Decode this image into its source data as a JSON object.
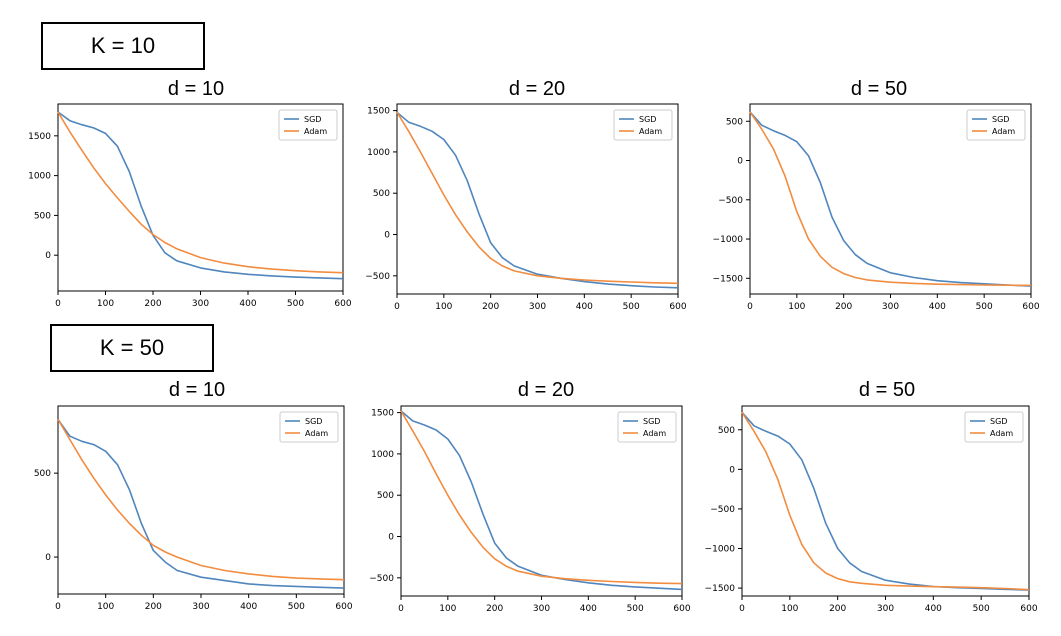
{
  "labels": {
    "k_top": "K = 10",
    "k_bottom": "K = 50"
  },
  "colors": {
    "sgd": "#4f86bd",
    "adam": "#f28c40",
    "axis": "#000000"
  },
  "chart_data": [
    {
      "type": "line",
      "title": "d = 10",
      "group": "K = 10",
      "xlim": [
        0,
        600
      ],
      "ylim": [
        -450,
        1900
      ],
      "xticks": [
        "0",
        "100",
        "200",
        "300",
        "400",
        "500",
        "600"
      ],
      "yticks": [
        {
          "value": 1500,
          "label": "1500"
        },
        {
          "value": 1000,
          "label": "1000"
        },
        {
          "value": 500,
          "label": "500"
        },
        {
          "value": 0,
          "label": "0"
        }
      ],
      "legend": "top-right",
      "series": [
        {
          "name": "SGD",
          "x": [
            0,
            25,
            50,
            75,
            100,
            125,
            150,
            175,
            200,
            225,
            250,
            300,
            350,
            400,
            450,
            500,
            550,
            600
          ],
          "y": [
            1800,
            1690,
            1640,
            1600,
            1530,
            1370,
            1050,
            620,
            250,
            30,
            -70,
            -160,
            -210,
            -240,
            -260,
            -275,
            -285,
            -295
          ]
        },
        {
          "name": "Adam",
          "x": [
            0,
            25,
            50,
            75,
            100,
            125,
            150,
            175,
            200,
            225,
            250,
            300,
            350,
            400,
            450,
            500,
            550,
            600
          ],
          "y": [
            1800,
            1550,
            1320,
            1100,
            900,
            720,
            550,
            390,
            260,
            160,
            80,
            -30,
            -100,
            -145,
            -175,
            -195,
            -210,
            -220
          ]
        }
      ]
    },
    {
      "type": "line",
      "title": "d = 20",
      "group": "K = 10",
      "xlim": [
        0,
        600
      ],
      "ylim": [
        -720,
        1580
      ],
      "xticks": [
        "0",
        "100",
        "200",
        "300",
        "400",
        "500",
        "600"
      ],
      "yticks": [
        {
          "value": 1500,
          "label": "1500"
        },
        {
          "value": 1000,
          "label": "1000"
        },
        {
          "value": 500,
          "label": "500"
        },
        {
          "value": 0,
          "label": "0"
        },
        {
          "value": -500,
          "label": "−500"
        }
      ],
      "legend": "top-right",
      "series": [
        {
          "name": "SGD",
          "x": [
            0,
            25,
            50,
            75,
            100,
            125,
            150,
            175,
            200,
            225,
            250,
            300,
            350,
            400,
            450,
            500,
            550,
            600
          ],
          "y": [
            1480,
            1360,
            1310,
            1250,
            1150,
            960,
            650,
            250,
            -100,
            -280,
            -380,
            -480,
            -530,
            -570,
            -600,
            -620,
            -635,
            -645
          ]
        },
        {
          "name": "Adam",
          "x": [
            0,
            25,
            50,
            75,
            100,
            125,
            150,
            175,
            200,
            225,
            250,
            300,
            350,
            400,
            450,
            500,
            550,
            600
          ],
          "y": [
            1480,
            1250,
            1000,
            740,
            480,
            240,
            30,
            -150,
            -290,
            -380,
            -440,
            -500,
            -530,
            -550,
            -565,
            -575,
            -585,
            -590
          ]
        }
      ]
    },
    {
      "type": "line",
      "title": "d = 50",
      "group": "K = 10",
      "xlim": [
        0,
        600
      ],
      "ylim": [
        -1700,
        720
      ],
      "xticks": [
        "0",
        "100",
        "200",
        "300",
        "400",
        "500",
        "600"
      ],
      "yticks": [
        {
          "value": 500,
          "label": "500"
        },
        {
          "value": 0,
          "label": "0"
        },
        {
          "value": -500,
          "label": "−500"
        },
        {
          "value": -1000,
          "label": "−1000"
        },
        {
          "value": -1500,
          "label": "−1500"
        }
      ],
      "legend": "top-right",
      "series": [
        {
          "name": "SGD",
          "x": [
            0,
            25,
            50,
            75,
            100,
            125,
            150,
            175,
            200,
            225,
            250,
            300,
            350,
            400,
            450,
            500,
            550,
            600
          ],
          "y": [
            620,
            450,
            380,
            320,
            240,
            60,
            -280,
            -720,
            -1020,
            -1200,
            -1310,
            -1430,
            -1490,
            -1530,
            -1555,
            -1570,
            -1585,
            -1600
          ]
        },
        {
          "name": "Adam",
          "x": [
            0,
            25,
            50,
            75,
            100,
            125,
            150,
            175,
            200,
            225,
            250,
            300,
            350,
            400,
            450,
            500,
            550,
            600
          ],
          "y": [
            620,
            400,
            150,
            -200,
            -650,
            -1000,
            -1220,
            -1360,
            -1440,
            -1490,
            -1520,
            -1550,
            -1565,
            -1575,
            -1580,
            -1585,
            -1588,
            -1590
          ]
        }
      ]
    },
    {
      "type": "line",
      "title": "d = 10",
      "group": "K = 50",
      "xlim": [
        0,
        600
      ],
      "ylim": [
        -220,
        900
      ],
      "xticks": [
        "0",
        "100",
        "200",
        "300",
        "400",
        "500",
        "600"
      ],
      "yticks": [
        {
          "value": 500,
          "label": "500"
        },
        {
          "value": 0,
          "label": "0"
        }
      ],
      "legend": "top-right",
      "series": [
        {
          "name": "SGD",
          "x": [
            0,
            25,
            50,
            75,
            100,
            125,
            150,
            175,
            200,
            225,
            250,
            300,
            350,
            400,
            450,
            500,
            550,
            600
          ],
          "y": [
            820,
            720,
            690,
            670,
            630,
            550,
            400,
            200,
            40,
            -30,
            -80,
            -120,
            -140,
            -160,
            -170,
            -175,
            -180,
            -185
          ]
        },
        {
          "name": "Adam",
          "x": [
            0,
            25,
            50,
            75,
            100,
            125,
            150,
            175,
            200,
            225,
            250,
            300,
            350,
            400,
            450,
            500,
            550,
            600
          ],
          "y": [
            820,
            700,
            580,
            470,
            370,
            280,
            200,
            130,
            70,
            30,
            0,
            -50,
            -80,
            -100,
            -115,
            -125,
            -130,
            -135
          ]
        }
      ]
    },
    {
      "type": "line",
      "title": "d = 20",
      "group": "K = 50",
      "xlim": [
        0,
        600
      ],
      "ylim": [
        -720,
        1580
      ],
      "xticks": [
        "0",
        "100",
        "200",
        "300",
        "400",
        "500",
        "600"
      ],
      "yticks": [
        {
          "value": 1500,
          "label": "1500"
        },
        {
          "value": 1000,
          "label": "1000"
        },
        {
          "value": 500,
          "label": "500"
        },
        {
          "value": 0,
          "label": "0"
        },
        {
          "value": -500,
          "label": "−500"
        }
      ],
      "legend": "top-right",
      "series": [
        {
          "name": "SGD",
          "x": [
            0,
            25,
            50,
            75,
            100,
            125,
            150,
            175,
            200,
            225,
            250,
            300,
            350,
            400,
            450,
            500,
            550,
            600
          ],
          "y": [
            1520,
            1400,
            1350,
            1290,
            1180,
            980,
            660,
            270,
            -80,
            -260,
            -360,
            -470,
            -520,
            -560,
            -590,
            -610,
            -625,
            -640
          ]
        },
        {
          "name": "Adam",
          "x": [
            0,
            25,
            50,
            75,
            100,
            125,
            150,
            175,
            200,
            225,
            250,
            300,
            350,
            400,
            450,
            500,
            550,
            600
          ],
          "y": [
            1520,
            1280,
            1030,
            760,
            500,
            260,
            50,
            -130,
            -270,
            -360,
            -420,
            -480,
            -510,
            -530,
            -545,
            -555,
            -565,
            -570
          ]
        }
      ]
    },
    {
      "type": "line",
      "title": "d = 50",
      "group": "K = 50",
      "xlim": [
        0,
        600
      ],
      "ylim": [
        -1600,
        800
      ],
      "xticks": [
        "0",
        "100",
        "200",
        "300",
        "400",
        "500",
        "600"
      ],
      "yticks": [
        {
          "value": 500,
          "label": "500"
        },
        {
          "value": 0,
          "label": "0"
        },
        {
          "value": -500,
          "label": "−500"
        },
        {
          "value": -1000,
          "label": "−1000"
        },
        {
          "value": -1500,
          "label": "−1500"
        }
      ],
      "legend": "top-right",
      "series": [
        {
          "name": "SGD",
          "x": [
            0,
            25,
            50,
            75,
            100,
            125,
            150,
            175,
            200,
            225,
            250,
            300,
            350,
            400,
            450,
            500,
            550,
            600
          ],
          "y": [
            720,
            550,
            480,
            420,
            320,
            120,
            -240,
            -680,
            -1000,
            -1180,
            -1290,
            -1400,
            -1450,
            -1480,
            -1495,
            -1505,
            -1515,
            -1525
          ]
        },
        {
          "name": "Adam",
          "x": [
            0,
            25,
            50,
            75,
            100,
            125,
            150,
            175,
            200,
            225,
            250,
            300,
            350,
            400,
            450,
            500,
            550,
            600
          ],
          "y": [
            720,
            480,
            220,
            -130,
            -580,
            -950,
            -1180,
            -1310,
            -1380,
            -1420,
            -1440,
            -1465,
            -1475,
            -1482,
            -1488,
            -1495,
            -1505,
            -1520
          ]
        }
      ]
    }
  ]
}
